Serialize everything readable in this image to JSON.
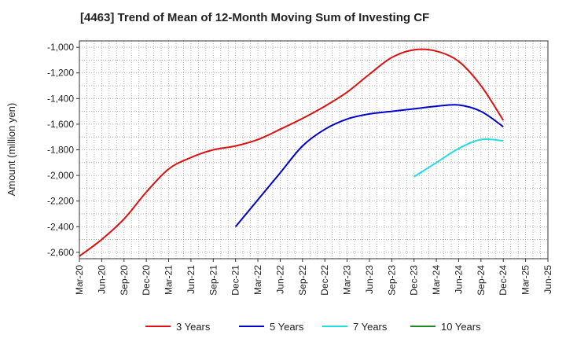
{
  "chart_data": {
    "type": "line",
    "title": "[4463]  Trend of Mean of 12-Month Moving Sum of Investing CF",
    "ylabel": "Amount (million yen)",
    "xlabel": "",
    "ylim": [
      -2650,
      -950
    ],
    "yticks": [
      -1000,
      -1200,
      -1400,
      -1600,
      -1800,
      -2000,
      -2200,
      -2400,
      -2600
    ],
    "ytick_labels": [
      "-1,000",
      "-1,200",
      "-1,400",
      "-1,600",
      "-1,800",
      "-2,000",
      "-2,200",
      "-2,400",
      "-2,600"
    ],
    "categories": [
      "Mar-20",
      "Jun-20",
      "Sep-20",
      "Dec-20",
      "Mar-21",
      "Jun-21",
      "Sep-21",
      "Dec-21",
      "Mar-22",
      "Jun-22",
      "Sep-22",
      "Dec-22",
      "Mar-23",
      "Jun-23",
      "Sep-23",
      "Dec-23",
      "Mar-24",
      "Jun-24",
      "Sep-24",
      "Dec-24",
      "Mar-25",
      "Jun-25"
    ],
    "grid": true,
    "legend_position": "bottom",
    "series": [
      {
        "name": "3 Years",
        "color": "#dd1111",
        "values": [
          -2630,
          -2500,
          -2340,
          -2130,
          -1950,
          -1860,
          -1800,
          -1770,
          -1720,
          -1640,
          -1555,
          -1460,
          -1350,
          -1210,
          -1080,
          -1020,
          -1030,
          -1110,
          -1300,
          -1570,
          null,
          null
        ]
      },
      {
        "name": "5 Years",
        "color": "#0000cc",
        "values": [
          null,
          null,
          null,
          null,
          null,
          null,
          null,
          -2400,
          -2190,
          -1980,
          -1770,
          -1640,
          -1560,
          -1520,
          -1500,
          -1480,
          -1460,
          -1450,
          -1500,
          -1620,
          null,
          null
        ]
      },
      {
        "name": "7 Years",
        "color": "#22dddd",
        "values": [
          null,
          null,
          null,
          null,
          null,
          null,
          null,
          null,
          null,
          null,
          null,
          null,
          null,
          null,
          null,
          -2010,
          -1900,
          -1790,
          -1720,
          -1730,
          null,
          null
        ]
      },
      {
        "name": "10 Years",
        "color": "#228822",
        "values": [
          null,
          null,
          null,
          null,
          null,
          null,
          null,
          null,
          null,
          null,
          null,
          null,
          null,
          null,
          null,
          null,
          null,
          null,
          null,
          null,
          null,
          null
        ]
      }
    ]
  }
}
